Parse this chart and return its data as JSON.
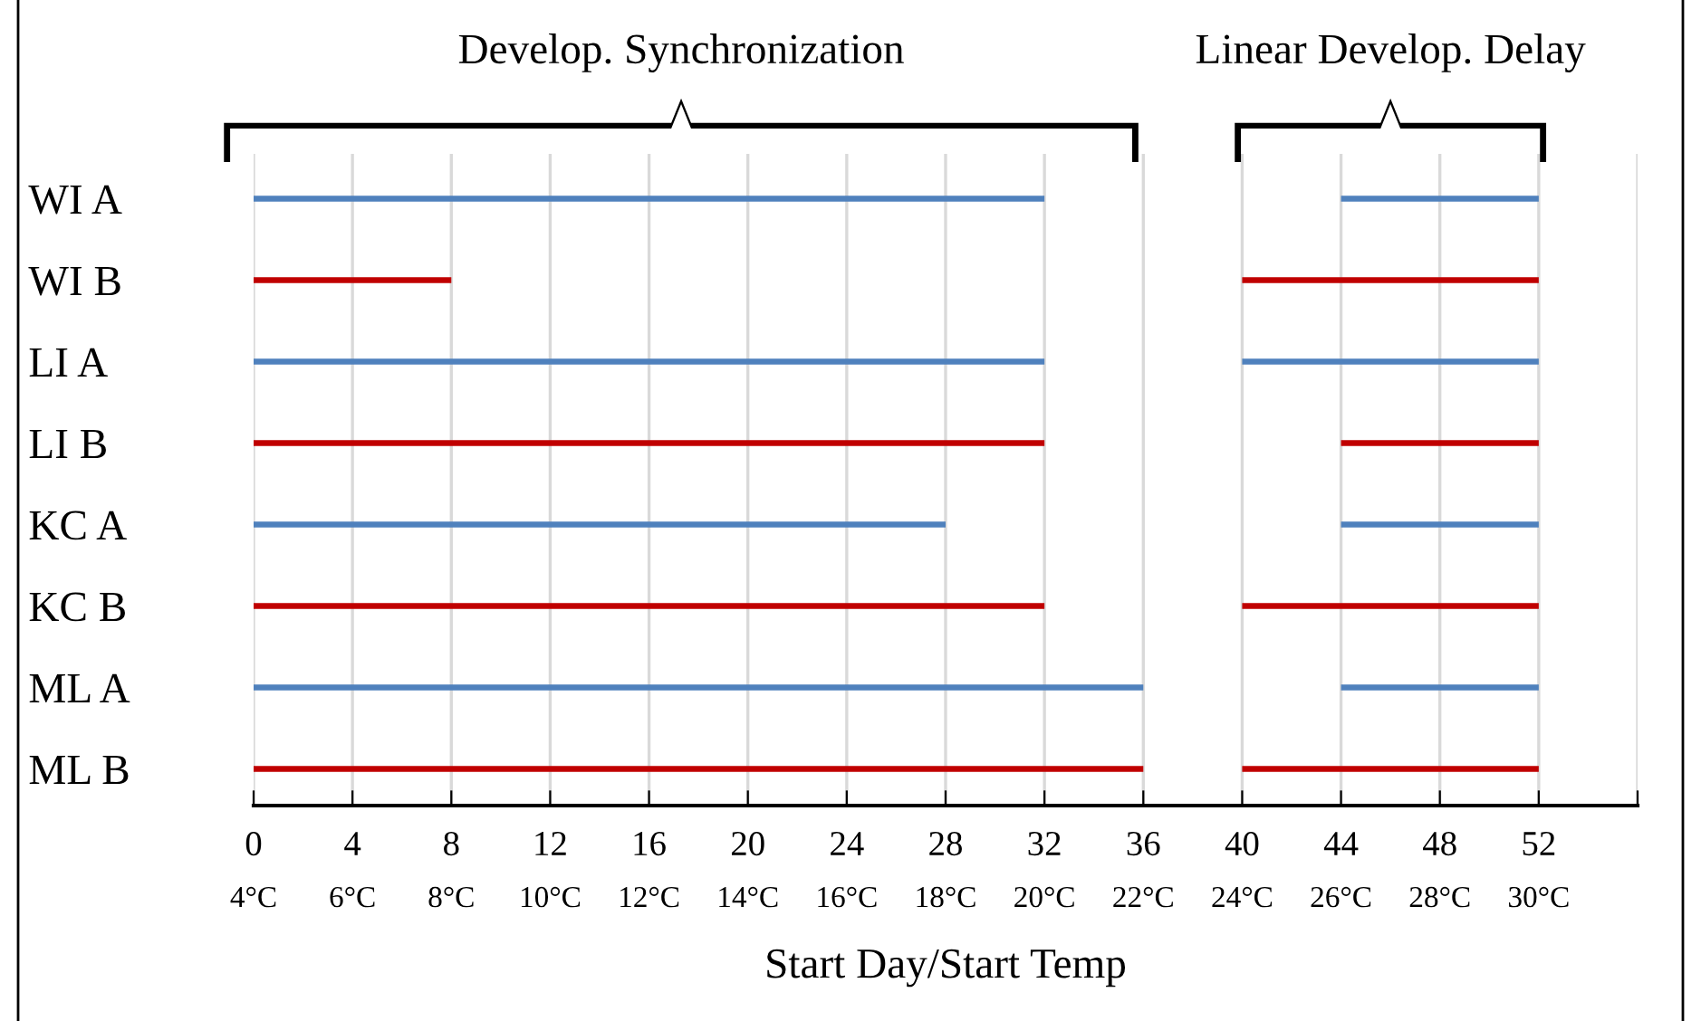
{
  "chart_data": {
    "type": "bar",
    "orientation": "horizontal",
    "xlabel": "Start Day/Start Temp",
    "categories": [
      "WI A",
      "WI B",
      "LI A",
      "LI B",
      "KC A",
      "KC B",
      "ML A",
      "ML B"
    ],
    "series": [
      {
        "colors": [
          "#4f81bd",
          "#c00000",
          "#4f81bd",
          "#c00000",
          "#4f81bd",
          "#c00000",
          "#4f81bd",
          "#c00000"
        ],
        "base": [
          0,
          0,
          0,
          0,
          0,
          0,
          0,
          0
        ],
        "values": [
          32,
          8,
          32,
          32,
          28,
          32,
          36,
          36
        ]
      },
      {
        "colors": [
          "#4f81bd",
          "#c00000",
          "#4f81bd",
          "#c00000",
          "#4f81bd",
          "#c00000",
          "#4f81bd",
          "#c00000"
        ],
        "base": [
          44,
          40,
          40,
          44,
          44,
          40,
          44,
          40
        ],
        "values": [
          8,
          12,
          12,
          8,
          8,
          12,
          8,
          12
        ]
      }
    ],
    "xlim": [
      0,
      56
    ],
    "xticks": [
      0,
      4,
      8,
      12,
      16,
      20,
      24,
      28,
      32,
      36,
      40,
      44,
      48,
      52,
      {
        "value": 56,
        "label": null
      }
    ],
    "x2lim": [
      4,
      32
    ],
    "x2ticks": [
      {
        "value": 4,
        "label": "4°C"
      },
      {
        "value": 6,
        "label": "6°C"
      },
      {
        "value": 8,
        "label": "8°C"
      },
      {
        "value": 10,
        "label": "10°C"
      },
      {
        "value": 12,
        "label": "12°C"
      },
      {
        "value": 14,
        "label": "14°C"
      },
      {
        "value": 16,
        "label": "16°C"
      },
      {
        "value": 18,
        "label": "18°C"
      },
      {
        "value": 20,
        "label": "20°C"
      },
      {
        "value": 22,
        "label": "22°C"
      },
      {
        "value": 24,
        "label": "24°C"
      },
      {
        "value": 26,
        "label": "26°C"
      },
      {
        "value": 28,
        "label": "28°C"
      },
      {
        "value": 30,
        "label": "30°C"
      }
    ],
    "grid": "x",
    "legend": false,
    "annotations": [
      "Develop. Synchronization",
      "Linear Develop. Delay"
    ]
  }
}
